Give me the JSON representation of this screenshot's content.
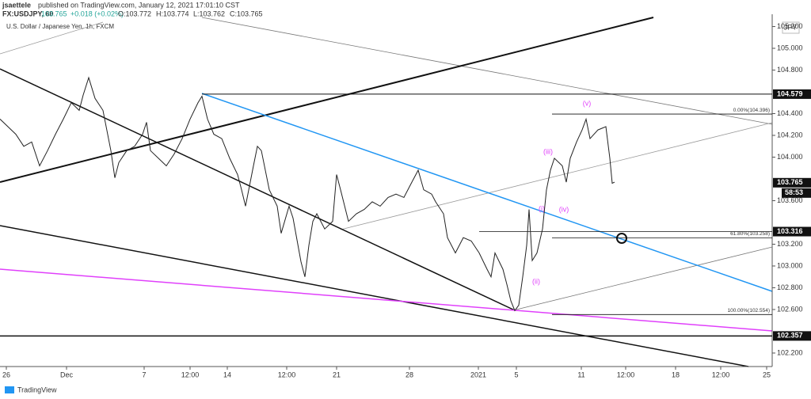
{
  "header": {
    "author": "jsaettele",
    "published": "published on TradingView.com, January 12, 2021 17:01:10 CST",
    "symbol": "FX:USDJPY, 60",
    "last": "103.765",
    "change": "+0.018 (+0.02%)",
    "open": "O:103.772",
    "high": "H:103.774",
    "low": "L:103.762",
    "close": "C:103.765"
  },
  "chart_data": {
    "type": "line",
    "title": "U.S. Dollar / Japanese Yen, 1h, FXCM",
    "currency": "JPY",
    "color": "#222222",
    "x": [
      0,
      10,
      20,
      30,
      40,
      50,
      60,
      70,
      80,
      90,
      100,
      105,
      112,
      120,
      130,
      140,
      145,
      150,
      160,
      170,
      180,
      185,
      190,
      200,
      210,
      220,
      230,
      240,
      250,
      255,
      262,
      270,
      280,
      290,
      300,
      305,
      310,
      320,
      325,
      330,
      340,
      350,
      355,
      365,
      370,
      380,
      385,
      390,
      395,
      400,
      410,
      420,
      425,
      430,
      440,
      450,
      460,
      470,
      480,
      490,
      500,
      510,
      520,
      528,
      535,
      545,
      550,
      560,
      565,
      575,
      585,
      595,
      605,
      615,
      620,
      625,
      635,
      640,
      645,
      650,
      655,
      660,
      665,
      668,
      672,
      678,
      685,
      690,
      695,
      700,
      710,
      715,
      720,
      728,
      735,
      740,
      745,
      755,
      765,
      770,
      773,
      776
    ],
    "values": [
      104.35,
      104.28,
      104.21,
      104.1,
      104.14,
      103.92,
      104.06,
      104.21,
      104.35,
      104.5,
      104.43,
      104.57,
      104.73,
      104.54,
      104.43,
      104.06,
      103.81,
      103.95,
      104.06,
      104.1,
      104.21,
      104.32,
      104.06,
      103.99,
      103.92,
      104.03,
      104.17,
      104.35,
      104.5,
      104.56,
      104.35,
      104.21,
      104.17,
      103.99,
      103.84,
      103.7,
      103.55,
      103.92,
      104.1,
      104.06,
      103.7,
      103.55,
      103.3,
      103.55,
      103.44,
      103.04,
      102.9,
      103.19,
      103.41,
      103.48,
      103.34,
      103.41,
      103.84,
      103.7,
      103.41,
      103.48,
      103.52,
      103.59,
      103.55,
      103.63,
      103.66,
      103.63,
      103.77,
      103.88,
      103.7,
      103.66,
      103.59,
      103.48,
      103.26,
      103.12,
      103.26,
      103.23,
      103.12,
      102.97,
      102.9,
      103.12,
      102.97,
      102.83,
      102.68,
      102.59,
      102.64,
      102.9,
      103.19,
      103.52,
      103.05,
      103.12,
      103.34,
      103.7,
      103.88,
      103.99,
      103.92,
      103.77,
      103.99,
      104.14,
      104.25,
      104.35,
      104.17,
      104.25,
      104.28,
      103.99,
      103.76,
      103.77
    ],
    "xlim": [
      0,
      975
    ],
    "xticks": [
      {
        "value": 8,
        "label": "26"
      },
      {
        "value": 84,
        "label": "Dec"
      },
      {
        "value": 182,
        "label": "7"
      },
      {
        "value": 240,
        "label": "12:00"
      },
      {
        "value": 287,
        "label": "14"
      },
      {
        "value": 362,
        "label": "12:00"
      },
      {
        "value": 425,
        "label": "21"
      },
      {
        "value": 517,
        "label": "28"
      },
      {
        "value": 604,
        "label": "2021"
      },
      {
        "value": 652,
        "label": "5"
      },
      {
        "value": 734,
        "label": "11"
      },
      {
        "value": 790,
        "label": "12:00"
      },
      {
        "value": 853,
        "label": "18"
      },
      {
        "value": 910,
        "label": "12:00"
      },
      {
        "value": 968,
        "label": "25"
      }
    ],
    "ylim": [
      102.076,
      105.313
    ],
    "yticks": [
      {
        "value": 105.2,
        "label": "105.200"
      },
      {
        "value": 105.0,
        "label": "105.000"
      },
      {
        "value": 104.8,
        "label": "104.800"
      },
      {
        "value": 104.4,
        "label": "104.400"
      },
      {
        "value": 104.2,
        "label": "104.200"
      },
      {
        "value": 104.0,
        "label": "104.000"
      },
      {
        "value": 103.6,
        "label": "103.600"
      },
      {
        "value": 103.2,
        "label": "103.200"
      },
      {
        "value": 103.0,
        "label": "103.000"
      },
      {
        "value": 102.8,
        "label": "102.800"
      },
      {
        "value": 102.6,
        "label": "102.600"
      },
      {
        "value": 102.2,
        "label": "102.200"
      }
    ],
    "grid": false,
    "levels": [
      104.579,
      103.316,
      102.357
    ],
    "last_price": 103.765,
    "countdown": "58:53",
    "fib": [
      {
        "value": 104.396,
        "label": "0.00%(104.396)"
      },
      {
        "value": 103.258,
        "label": "61.80%(103.258)"
      },
      {
        "value": 102.554,
        "label": "100.00%(102.554)"
      }
    ],
    "wave_labels": [
      "(i)",
      "(ii)",
      "(iii)",
      "(iv)",
      "(v)"
    ]
  },
  "footer": {
    "brand": "TradingView"
  }
}
